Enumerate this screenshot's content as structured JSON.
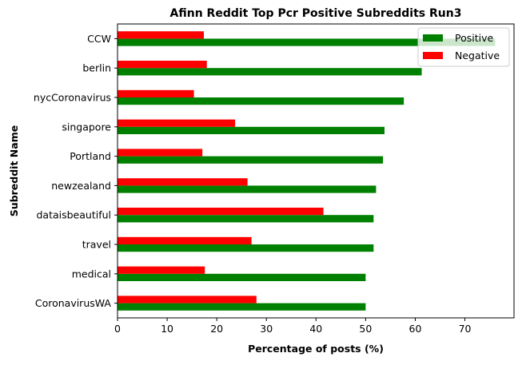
{
  "chart_data": {
    "type": "bar",
    "orientation": "horizontal",
    "title": "Afinn Reddit Top Pcr Positive Subreddits Run3",
    "xlabel": "Percentage of posts (%)",
    "ylabel": "Subreddit Name",
    "categories": [
      "CoronavirusWA",
      "medical",
      "travel",
      "dataisbeautiful",
      "newzealand",
      "Portland",
      "singapore",
      "nycCoronavirus",
      "berlin",
      "CCW"
    ],
    "series": [
      {
        "name": "Positive",
        "color": "#008000",
        "values": [
          50.0,
          50.0,
          51.6,
          51.6,
          52.1,
          53.5,
          53.8,
          57.7,
          61.3,
          76.1
        ]
      },
      {
        "name": "Negative",
        "color": "#ff0000",
        "values": [
          28.0,
          17.6,
          27.0,
          41.5,
          26.2,
          17.1,
          23.7,
          15.4,
          18.0,
          17.4
        ]
      }
    ],
    "xlim": [
      0,
      79.9
    ],
    "xticks": [
      "0",
      "10",
      "20",
      "30",
      "40",
      "50",
      "60",
      "70"
    ],
    "grid": false,
    "legend_position": "top-right"
  }
}
